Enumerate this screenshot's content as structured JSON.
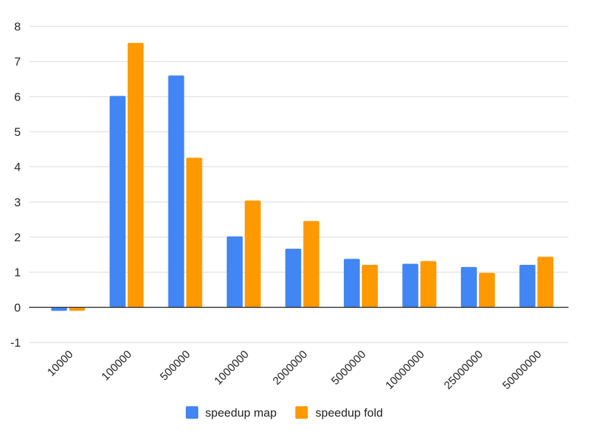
{
  "chart_data": {
    "type": "bar",
    "title": "",
    "xlabel": "",
    "ylabel": "",
    "categories": [
      "10000",
      "100000",
      "500000",
      "1000000",
      "2000000",
      "5000000",
      "10000000",
      "25000000",
      "50000000"
    ],
    "series": [
      {
        "name": "speedup map",
        "color": "#4285F4",
        "values": [
          -0.1,
          6.02,
          6.6,
          2.02,
          1.67,
          1.38,
          1.24,
          1.15,
          1.21
        ]
      },
      {
        "name": "speedup fold",
        "color": "#FF9900",
        "values": [
          -0.1,
          7.53,
          4.26,
          3.04,
          2.46,
          1.21,
          1.32,
          0.98,
          1.44
        ]
      }
    ],
    "ylim": [
      -1,
      8
    ],
    "yticks": [
      "-1",
      "0",
      "1",
      "2",
      "3",
      "4",
      "5",
      "6",
      "7",
      "8"
    ],
    "grid": true,
    "legend_position": "bottom"
  }
}
